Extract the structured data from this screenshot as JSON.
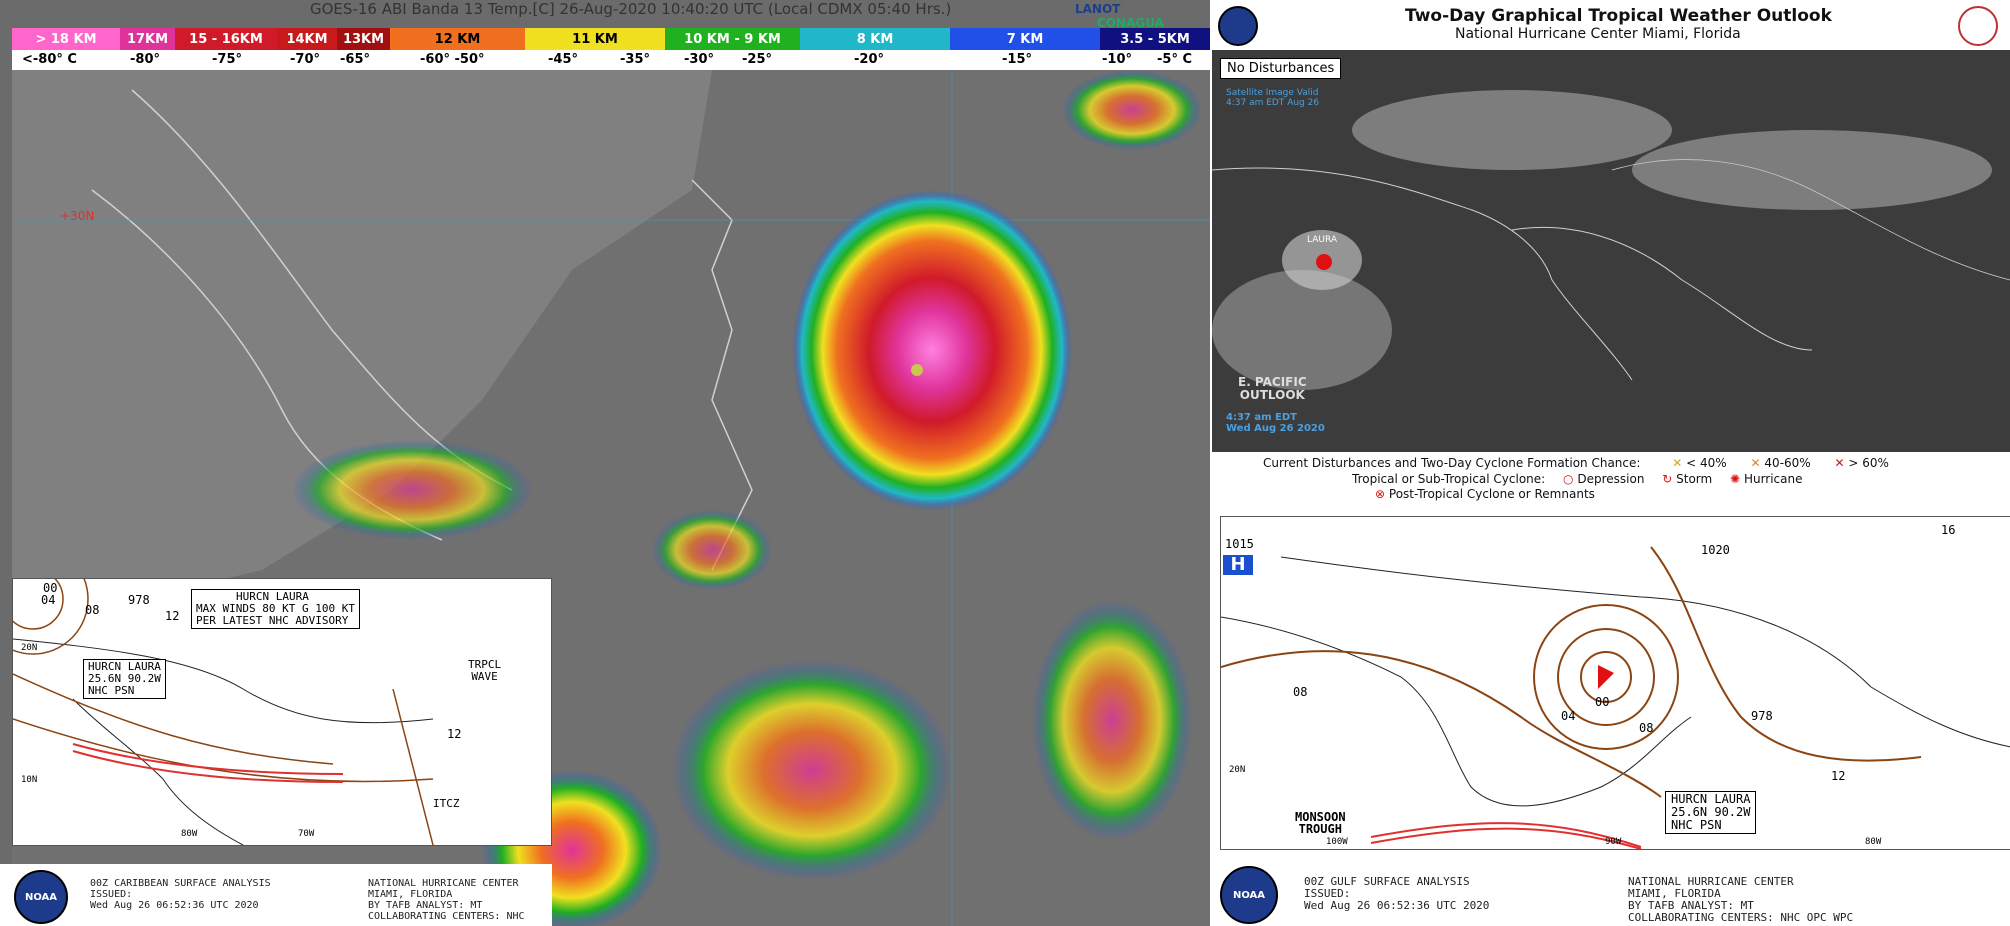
{
  "satellite": {
    "title": "GOES-16 ABI Banda 13 Temp.[C] 26-Aug-2020 10:40:20 UTC (Local CDMX  05:40 Hrs.)",
    "logos": [
      "LANOT",
      "CONAGUA"
    ],
    "grid_label": "+30N",
    "height_scale": [
      {
        "label": "> 18 KM",
        "color": "#ff66cc"
      },
      {
        "label": "17KM",
        "color": "#e0339a"
      },
      {
        "label": "15 - 16KM",
        "color": "#d01a2a"
      },
      {
        "label": "14KM",
        "color": "#c81a1a"
      },
      {
        "label": "13KM",
        "color": "#a01010"
      },
      {
        "label": "12 KM",
        "color": "#f07020"
      },
      {
        "label": "11 KM",
        "color": "#f0e020"
      },
      {
        "label": "10 KM - 9 KM",
        "color": "#20b020"
      },
      {
        "label": "8 KM",
        "color": "#20b8c8"
      },
      {
        "label": "7 KM",
        "color": "#2050e8"
      },
      {
        "label": "3.5 - 5KM",
        "color": "#101080"
      }
    ],
    "temperatures": [
      "<-80° C",
      "-80°",
      "-75°",
      "-70°",
      "-65°",
      "-60° -50°",
      "-45°",
      "-35°",
      "-30°",
      "-25°",
      "-20°",
      "-15°",
      "-10°",
      "-5° C"
    ]
  },
  "caribbean_analysis": {
    "storm_box": [
      "HURCN LAURA",
      "25.6N 90.2W",
      "NHC PSN"
    ],
    "advisory_box": [
      "HURCN LAURA",
      "MAX WINDS 80 KT G 100 KT",
      "PER LATEST NHC ADVISORY"
    ],
    "wave_label": [
      "TRPCL",
      "WAVE"
    ],
    "itcz_label": "ITCZ",
    "pressure_labels": [
      "04",
      "00",
      "978",
      "08",
      "12",
      "12",
      "08"
    ],
    "lat_labels": [
      "20N",
      "10N"
    ],
    "lon_labels": [
      "80W",
      "70W"
    ],
    "footer": [
      "00Z CARIBBEAN SURFACE ANALYSIS",
      "ISSUED:",
      "Wed Aug 26 06:52:36 UTC 2020"
    ],
    "footer_right": [
      "NATIONAL HURRICANE CENTER",
      "MIAMI, FLORIDA",
      "BY TAFB ANALYST: MT",
      "COLLABORATING CENTERS: NHC"
    ],
    "noaa_label": "NOAA"
  },
  "outlook": {
    "title": "Two-Day Graphical Tropical Weather Outlook",
    "subtitle": "National Hurricane Center  Miami, Florida",
    "badge": "No Disturbances",
    "map_timestamp": [
      "Satellite Image Valid",
      "4:37 am EDT Aug 26"
    ],
    "storm_label": "LAURA",
    "pacific_label": [
      "E. PACIFIC",
      "OUTLOOK"
    ],
    "pacific_time": [
      "4:37 am EDT",
      "Wed Aug 26 2020"
    ],
    "legend": {
      "line1": "Current Disturbances and Two-Day Cyclone Formation Chance:",
      "chance": [
        "< 40%",
        "40-60%",
        "> 60%"
      ],
      "chance_colors": [
        "#f0e020",
        "#f08020",
        "#e01010"
      ],
      "line2": "Tropical or Sub-Tropical Cyclone:",
      "types": [
        "Depression",
        "Storm",
        "Hurricane"
      ],
      "line3": "Post-Tropical Cyclone or Remnants"
    }
  },
  "gulf_analysis": {
    "storm_box": [
      "HURCN LAURA",
      "25.6N 90.2W",
      "NHC PSN"
    ],
    "high_label": "H",
    "pressure_labels": [
      "1015",
      "1020",
      "08",
      "04",
      "00",
      "08",
      "978",
      "12",
      "16"
    ],
    "feature_label": [
      "MONSOON",
      "TROUGH"
    ],
    "lat_labels": [
      "20N"
    ],
    "lon_labels": [
      "100W",
      "90W",
      "80W"
    ],
    "footer": [
      "00Z GULF SURFACE ANALYSIS",
      "ISSUED:",
      "Wed Aug 26 06:52:36 UTC 2020"
    ],
    "footer_right": [
      "NATIONAL HURRICANE CENTER",
      "MIAMI, FLORIDA",
      "BY TAFB ANALYST: MT",
      "COLLABORATING CENTERS: NHC OPC WPC"
    ],
    "noaa_label": "NOAA"
  }
}
